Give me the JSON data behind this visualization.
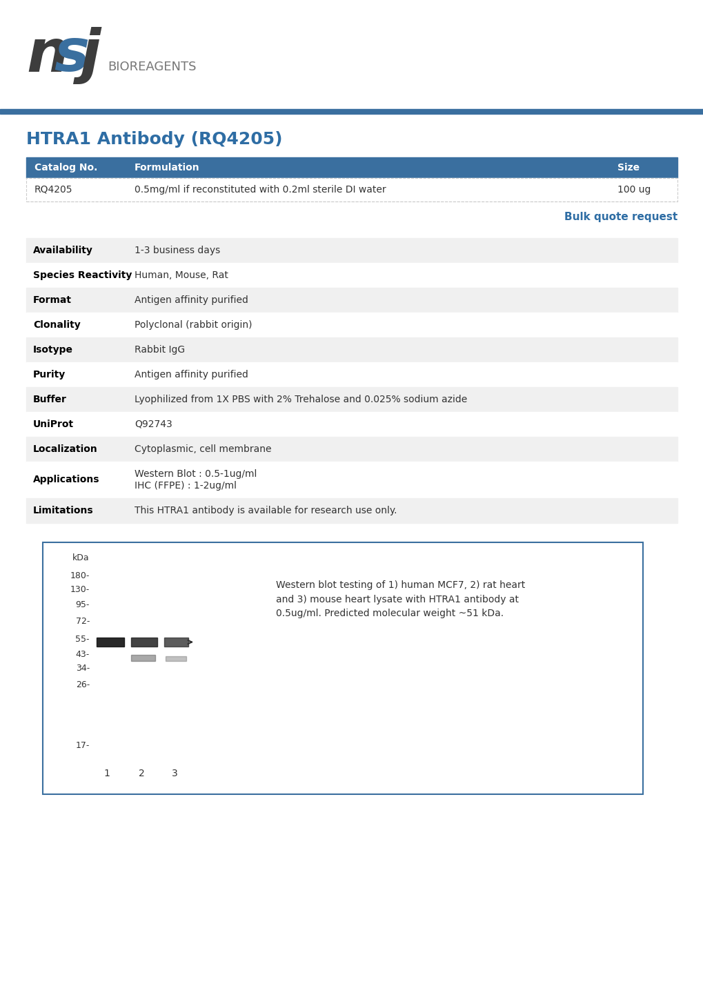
{
  "title": "HTRA1 Antibody (RQ4205)",
  "title_color": "#2e6da4",
  "title_fontsize": 18,
  "header_bg_color": "#3a6f9f",
  "header_text_color": "#ffffff",
  "table_header": [
    "Catalog No.",
    "Formulation",
    "Size"
  ],
  "table_row": [
    "RQ4205",
    "0.5mg/ml if reconstituted with 0.2ml sterile DI water",
    "100 ug"
  ],
  "bulk_quote_text": "Bulk quote request",
  "bulk_quote_color": "#2e6da4",
  "properties": [
    [
      "Availability",
      "1-3 business days"
    ],
    [
      "Species Reactivity",
      "Human, Mouse, Rat"
    ],
    [
      "Format",
      "Antigen affinity purified"
    ],
    [
      "Clonality",
      "Polyclonal (rabbit origin)"
    ],
    [
      "Isotype",
      "Rabbit IgG"
    ],
    [
      "Purity",
      "Antigen affinity purified"
    ],
    [
      "Buffer",
      "Lyophilized from 1X PBS with 2% Trehalose and 0.025% sodium azide"
    ],
    [
      "UniProt",
      "Q92743"
    ],
    [
      "Localization",
      "Cytoplasmic, cell membrane"
    ],
    [
      "Applications",
      "Western Blot : 0.5-1ug/ml\nIHC (FFPE) : 1-2ug/ml"
    ],
    [
      "Limitations",
      "This HTRA1 antibody is available for research use only."
    ]
  ],
  "row_bg_even": "#f0f0f0",
  "row_bg_odd": "#ffffff",
  "separator_color": "#3a6f9f",
  "wb_image_caption": "Western blot testing of 1) human MCF7, 2) rat heart\nand 3) mouse heart lysate with HTRA1 antibody at\n0.5ug/ml. Predicted molecular weight ~51 kDa.",
  "wb_kda_labels": [
    "kDa",
    "180-",
    "130-",
    "95-",
    "72-",
    "55-",
    "43-",
    "34-",
    "26-",
    "17-"
  ],
  "wb_lane_labels": [
    "1",
    "2",
    "3"
  ],
  "wb_box_border_color": "#3a6f9f",
  "bg_color": "#ffffff",
  "bioreagents_text": "BIOREAGENTS"
}
